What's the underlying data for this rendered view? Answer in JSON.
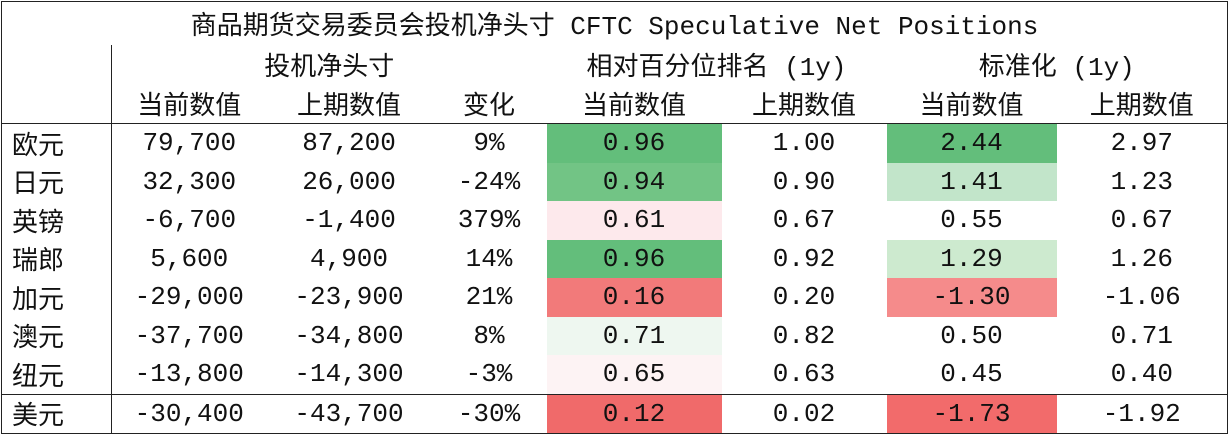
{
  "title": "商品期货交易委员会投机净头寸 CFTC Speculative Net Positions",
  "groups": [
    "投机净头寸",
    "相对百分位排名 (1y)",
    "标准化 (1y)"
  ],
  "columns": [
    "当前数值",
    "上期数值",
    "变化",
    "当前数值",
    "上期数值",
    "当前数值",
    "上期数值"
  ],
  "rows": [
    [
      "欧元",
      "79,700",
      "87,200",
      "9%",
      "0.96",
      "1.00",
      "2.44",
      "2.97"
    ],
    [
      "日元",
      "32,300",
      "26,000",
      "-24%",
      "0.94",
      "0.90",
      "1.41",
      "1.23"
    ],
    [
      "英镑",
      "-6,700",
      "-1,400",
      "379%",
      "0.61",
      "0.67",
      "0.55",
      "0.67"
    ],
    [
      "瑞郎",
      "5,600",
      "4,900",
      "14%",
      "0.96",
      "0.92",
      "1.29",
      "1.26"
    ],
    [
      "加元",
      "-29,000",
      "-23,900",
      "21%",
      "0.16",
      "0.20",
      "-1.30",
      "-1.06"
    ],
    [
      "澳元",
      "-37,700",
      "-34,800",
      "8%",
      "0.71",
      "0.82",
      "0.50",
      "0.71"
    ],
    [
      "纽元",
      "-13,800",
      "-14,300",
      "-3%",
      "0.65",
      "0.63",
      "0.45",
      "0.40"
    ],
    [
      "美元",
      "-30,400",
      "-43,700",
      "-30%",
      "0.12",
      "0.02",
      "-1.73",
      "-1.92"
    ]
  ]
}
